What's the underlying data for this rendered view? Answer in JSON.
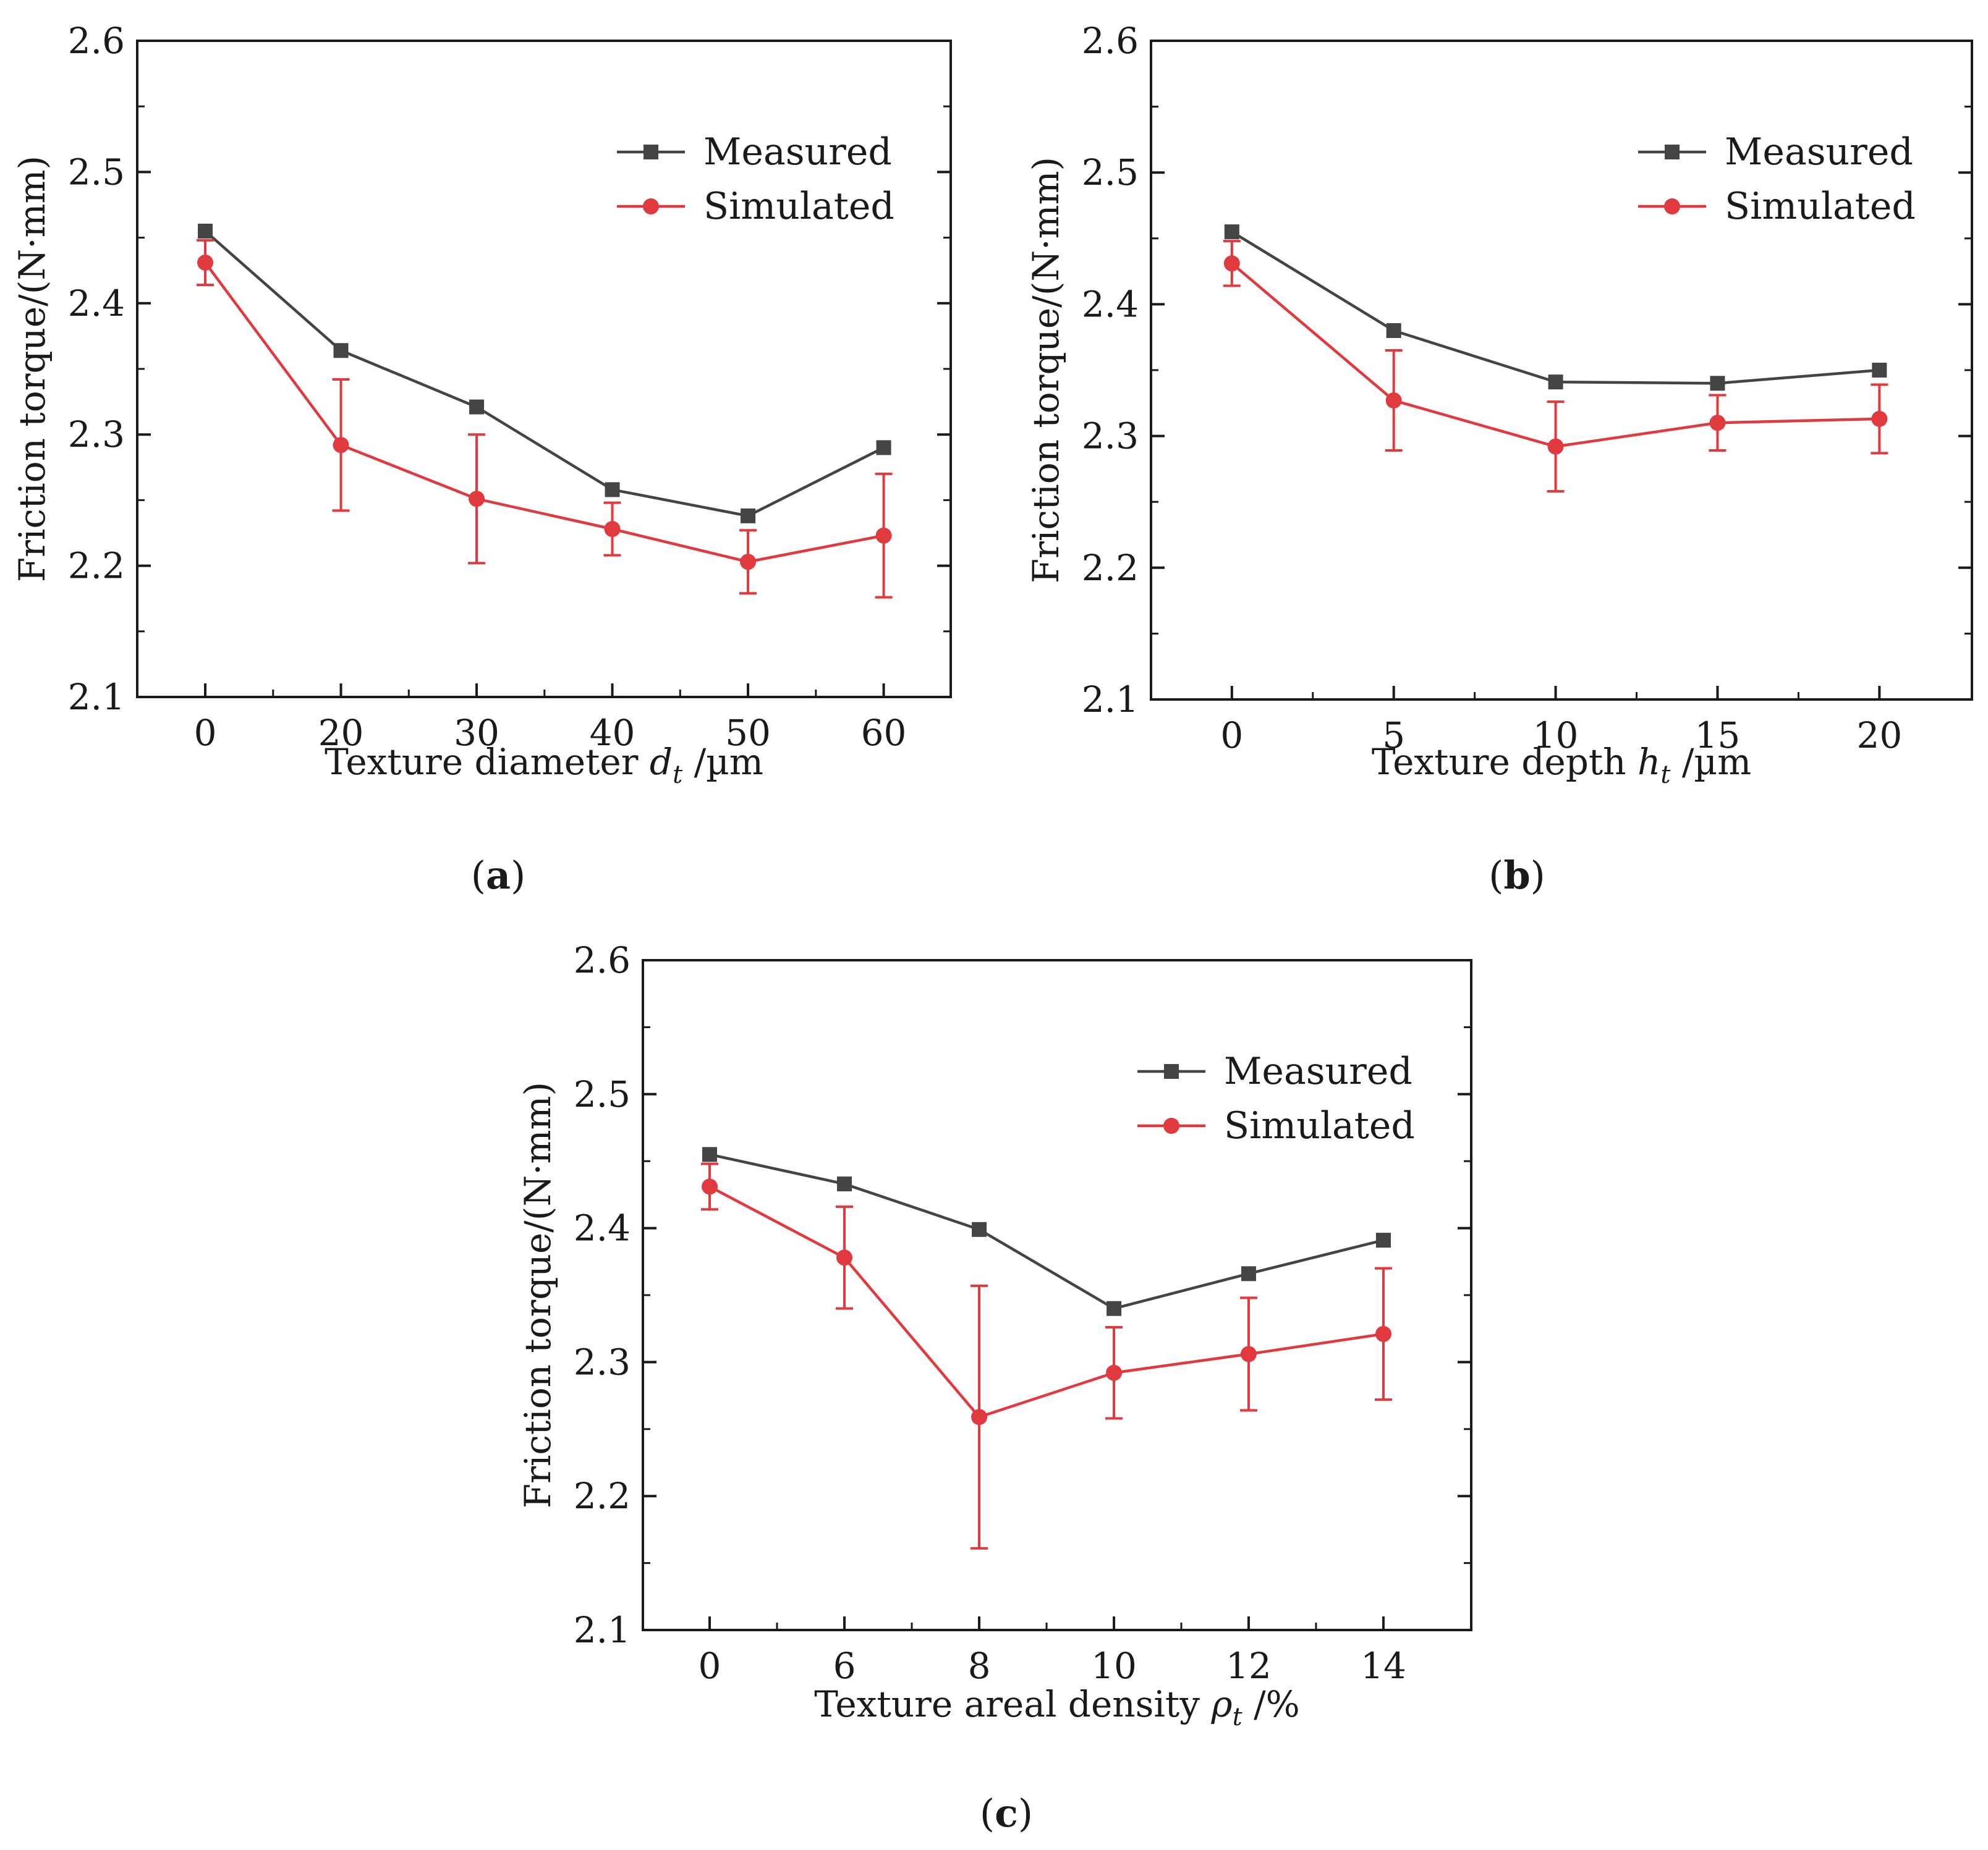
{
  "colors": {
    "measured": "#444444",
    "simulated": "#e0393e",
    "axis": "#1a1a1a"
  },
  "chart_data": [
    {
      "type": "line",
      "panel_label": "a",
      "xlabel_parts": {
        "pre": "Texture diameter ",
        "var": "d",
        "sub": "t",
        "post": " /µm"
      },
      "ylabel": "Friction torque/(N·mm)",
      "ylim": [
        2.1,
        2.6
      ],
      "yticks": [
        "2.1",
        "2.2",
        "2.3",
        "2.4",
        "2.5",
        "2.6"
      ],
      "categories": [
        "0",
        "20",
        "30",
        "40",
        "50",
        "60"
      ],
      "legend_position": "top-right",
      "series": [
        {
          "name": "Measured",
          "marker": "square",
          "values": [
            2.455,
            2.364,
            2.321,
            2.258,
            2.238,
            2.29
          ]
        },
        {
          "name": "Simulated",
          "marker": "circle",
          "values": [
            2.431,
            2.292,
            2.251,
            2.228,
            2.203,
            2.223
          ],
          "error": [
            0.017,
            0.05,
            0.049,
            0.02,
            0.024,
            0.047
          ]
        }
      ]
    },
    {
      "type": "line",
      "panel_label": "b",
      "xlabel_parts": {
        "pre": "Texture depth ",
        "var": "h",
        "sub": "t",
        "post": " /µm"
      },
      "ylabel": "Friction torque/(N·mm)",
      "ylim": [
        2.1,
        2.6
      ],
      "yticks": [
        "2.1",
        "2.2",
        "2.3",
        "2.4",
        "2.5",
        "2.6"
      ],
      "categories": [
        "0",
        "5",
        "10",
        "15",
        "20"
      ],
      "legend_position": "top-right",
      "series": [
        {
          "name": "Measured",
          "marker": "square",
          "values": [
            2.455,
            2.38,
            2.341,
            2.34,
            2.35
          ]
        },
        {
          "name": "Simulated",
          "marker": "circle",
          "values": [
            2.431,
            2.327,
            2.292,
            2.31,
            2.313
          ],
          "error": [
            0.017,
            0.038,
            0.034,
            0.021,
            0.026
          ]
        }
      ]
    },
    {
      "type": "line",
      "panel_label": "c",
      "xlabel_parts": {
        "pre": "Texture areal density ",
        "var": "ρ",
        "sub": "t",
        "post": " /%"
      },
      "ylabel": "Friction torque/(N·mm)",
      "ylim": [
        2.1,
        2.6
      ],
      "yticks": [
        "2.1",
        "2.2",
        "2.3",
        "2.4",
        "2.5",
        "2.6"
      ],
      "categories": [
        "0",
        "6",
        "8",
        "10",
        "12",
        "14"
      ],
      "legend_position": "top-right",
      "series": [
        {
          "name": "Measured",
          "marker": "square",
          "values": [
            2.455,
            2.433,
            2.399,
            2.34,
            2.366,
            2.391
          ]
        },
        {
          "name": "Simulated",
          "marker": "circle",
          "values": [
            2.431,
            2.378,
            2.259,
            2.292,
            2.306,
            2.321
          ],
          "error": [
            0.017,
            0.038,
            0.098,
            0.034,
            0.042,
            0.049
          ]
        }
      ]
    }
  ]
}
